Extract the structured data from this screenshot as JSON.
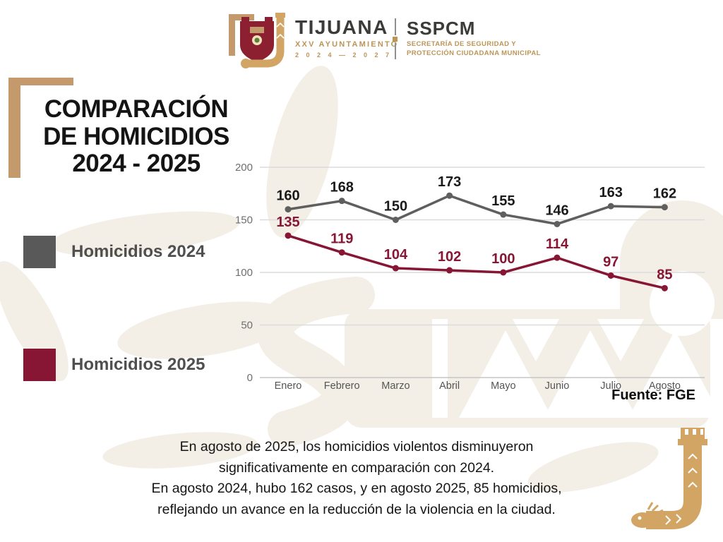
{
  "header": {
    "brand": "TIJUANA",
    "brand_sub": "XXV AYUNTAMIENTO",
    "brand_years": "2 0 2 4  —  2 0 2 7",
    "org": "SSPCM",
    "org_sub1": "SECRETARÍA DE SEGURIDAD Y",
    "org_sub2": "PROTECCIÓN CIUDADANA MUNICIPAL"
  },
  "title": {
    "line1": "COMPARACIÓN",
    "line2": "DE HOMICIDIOS",
    "line3": "2024 - 2025"
  },
  "legend": [
    {
      "label": "Homicidios 2024",
      "color": "#595959"
    },
    {
      "label": "Homicidios 2025",
      "color": "#871635"
    }
  ],
  "source": "Fuente: FGE",
  "summary": {
    "line1": "En agosto de 2025, los homicidios violentos disminuyeron",
    "line2": "significativamente en comparación con 2024.",
    "line3": "En agosto 2024, hubo 162 casos, y en agosto 2025, 85 homicidios,",
    "line4": "reflejando un avance en la reducción de la violencia en la ciudad."
  },
  "chart_data": {
    "type": "line",
    "title": "Comparación de homicidios 2024 - 2025",
    "categories": [
      "Enero",
      "Febrero",
      "Marzo",
      "Abril",
      "Mayo",
      "Junio",
      "Julio",
      "Agosto"
    ],
    "series": [
      {
        "name": "Homicidios 2024",
        "color": "#5f5f5f",
        "label_color": "#1a1a1a",
        "values": [
          160,
          168,
          150,
          173,
          155,
          146,
          163,
          162
        ]
      },
      {
        "name": "Homicidios 2025",
        "color": "#871635",
        "label_color": "#871635",
        "values": [
          135,
          119,
          104,
          102,
          100,
          114,
          97,
          85
        ]
      }
    ],
    "yticks": [
      200,
      150,
      100,
      50,
      0
    ],
    "ylim": [
      0,
      200
    ],
    "grid": true,
    "legend_position": "left",
    "source": "Fuente: FGE"
  },
  "colors": {
    "accent_gold": "#c49a6c",
    "serpent_gold": "#d2a564",
    "watermark_beige": "#f3efe7",
    "series_2024": "#5f5f5f",
    "series_2025": "#871635"
  }
}
